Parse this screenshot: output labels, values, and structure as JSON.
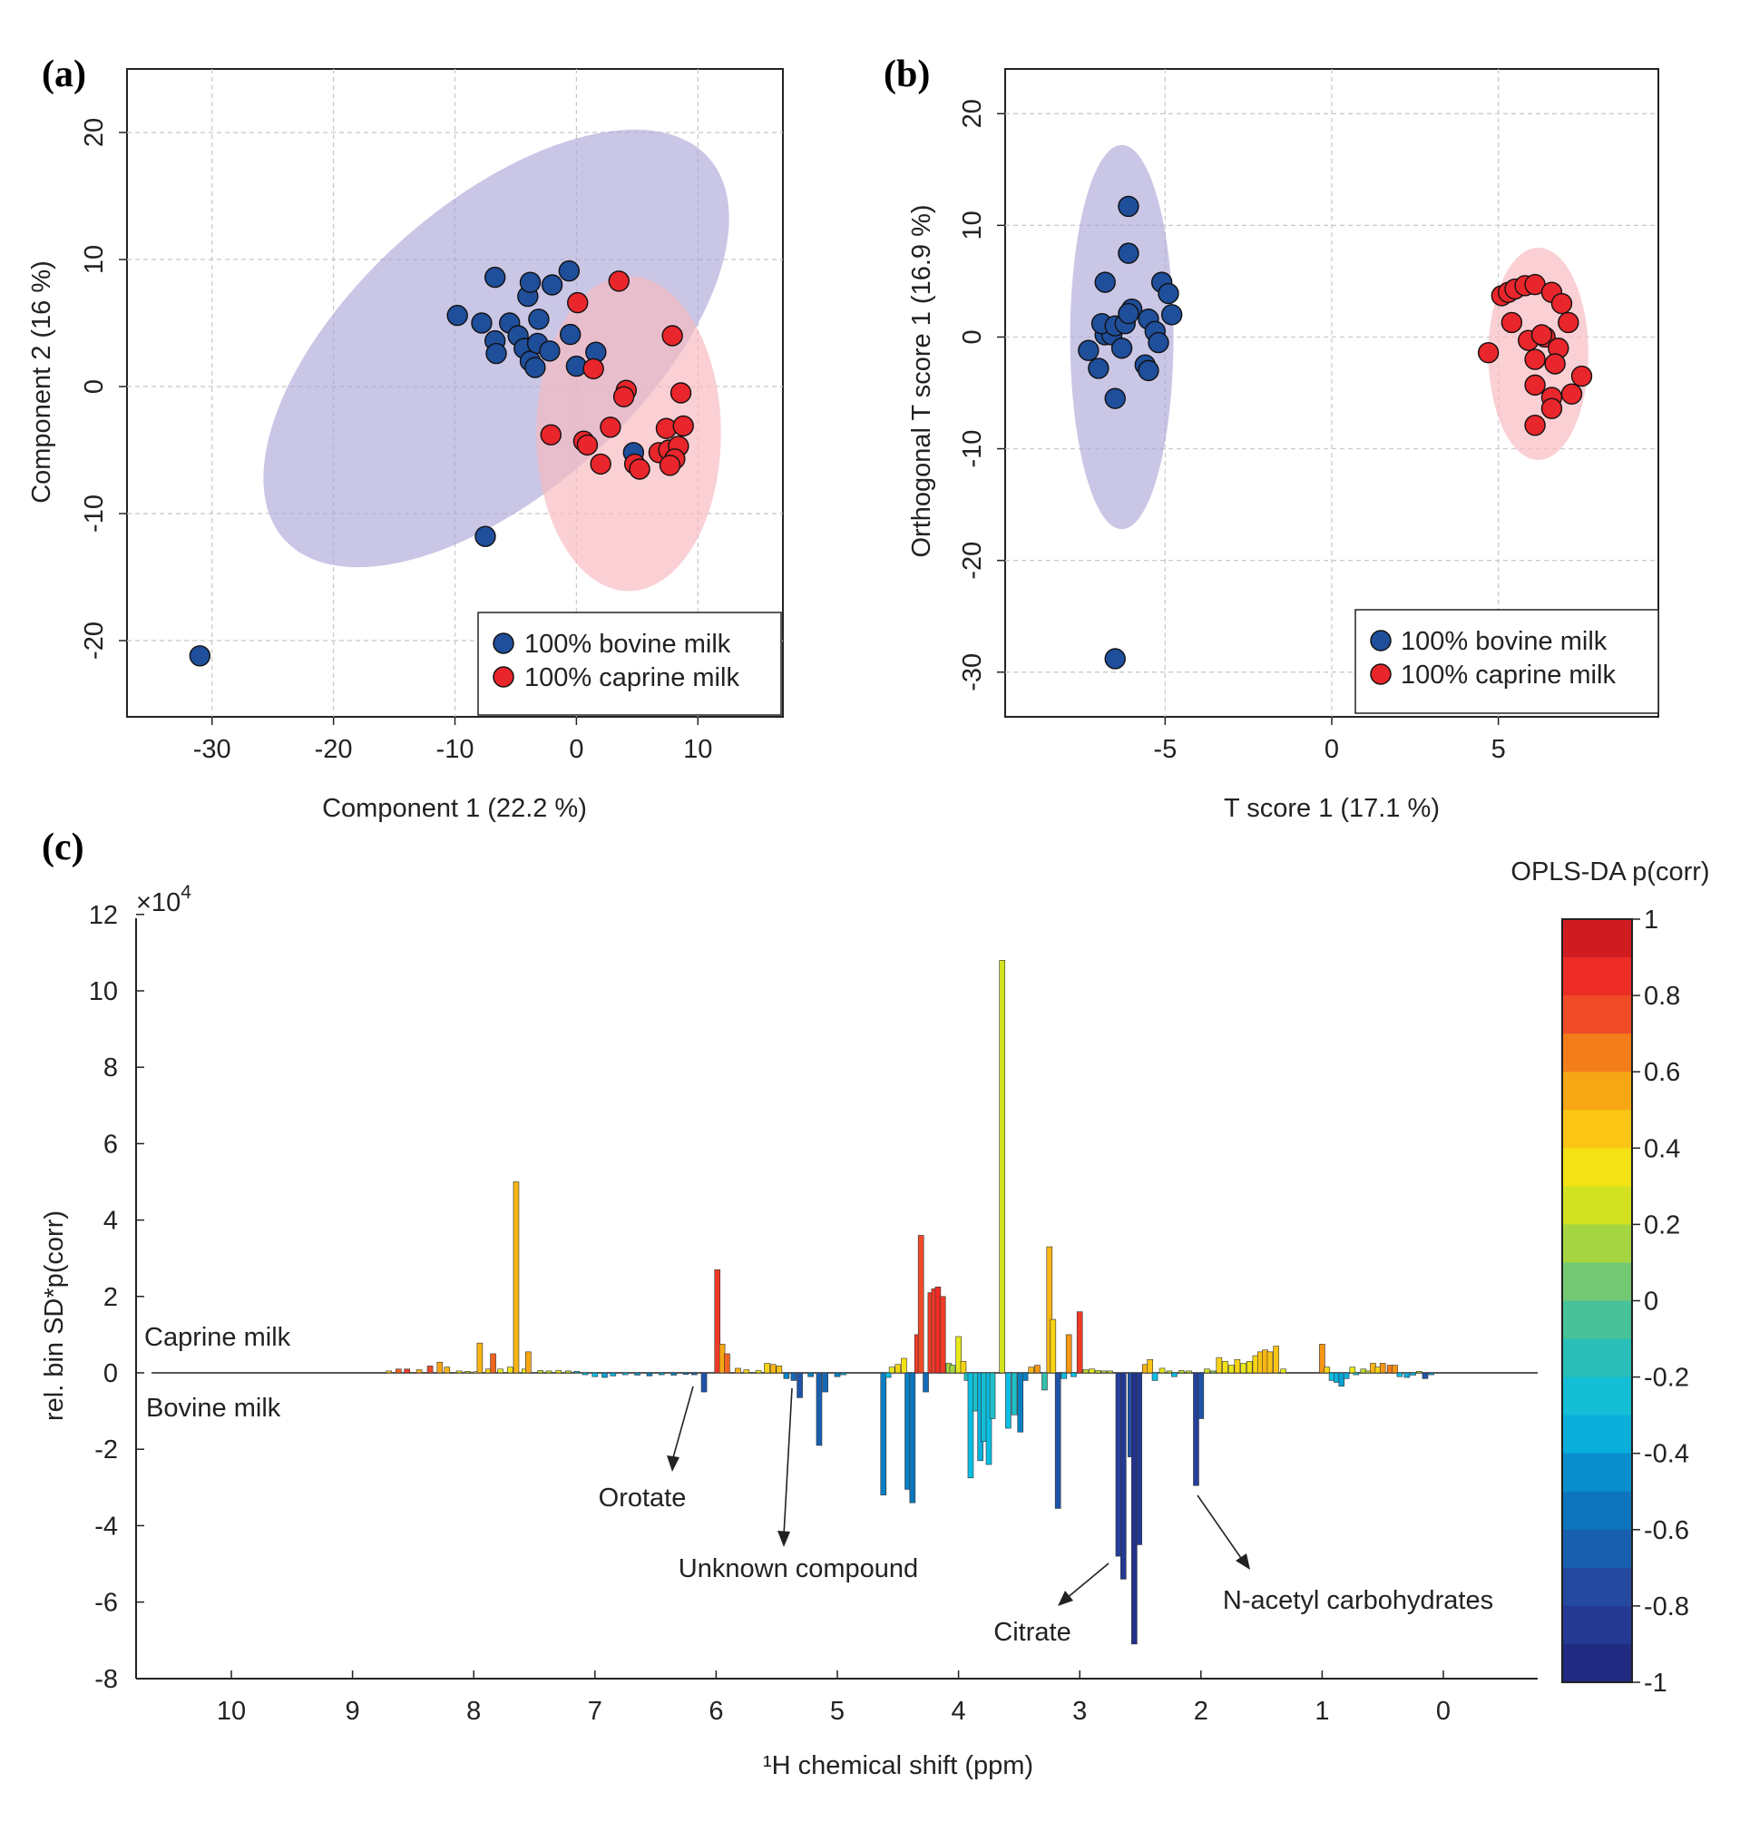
{
  "colors": {
    "bovine": "#1f4e9a",
    "caprine": "#e8262b",
    "bovine_ellipse": "#a9a3d6",
    "caprine_ellipse": "#f8b9c0"
  },
  "chart_data": [
    {
      "type": "scatter",
      "panel": "(a)",
      "xlabel": "Component 1 (22.2 %)",
      "ylabel": "Component 2 (16 %)",
      "xlim": [
        -37,
        17
      ],
      "ylim": [
        -26,
        25
      ],
      "xticks": [
        -30,
        -20,
        -10,
        0,
        10
      ],
      "yticks": [
        -20,
        -10,
        0,
        10,
        20
      ],
      "grid": true,
      "legend_position": "bottom-right",
      "series": [
        {
          "name": "100% bovine milk",
          "points": [
            [
              -31,
              -21.2
            ],
            [
              -7.5,
              -11.8
            ],
            [
              -9.8,
              5.6
            ],
            [
              -7.8,
              5.0
            ],
            [
              -6.7,
              3.6
            ],
            [
              -5.5,
              5.0
            ],
            [
              -4.8,
              4.0
            ],
            [
              -4.3,
              3.0
            ],
            [
              -3.8,
              2.0
            ],
            [
              -3.4,
              1.5
            ],
            [
              -6.6,
              2.6
            ],
            [
              -3.2,
              3.4
            ],
            [
              -2.2,
              2.8
            ],
            [
              -4.0,
              7.1
            ],
            [
              -2.0,
              8.0
            ],
            [
              -0.6,
              9.1
            ],
            [
              -3.8,
              8.2
            ],
            [
              -6.7,
              8.6
            ],
            [
              -3.1,
              5.3
            ],
            [
              -0.5,
              4.1
            ],
            [
              0.0,
              1.6
            ],
            [
              1.6,
              2.7
            ],
            [
              4.7,
              -5.2
            ]
          ]
        },
        {
          "name": "100% caprine milk",
          "points": [
            [
              0.1,
              6.6
            ],
            [
              3.5,
              8.3
            ],
            [
              1.4,
              1.4
            ],
            [
              7.9,
              4.0
            ],
            [
              4.1,
              -0.3
            ],
            [
              3.9,
              -0.8
            ],
            [
              8.6,
              -0.5
            ],
            [
              2.8,
              -3.2
            ],
            [
              7.4,
              -3.3
            ],
            [
              8.8,
              -3.1
            ],
            [
              -2.1,
              -3.8
            ],
            [
              0.6,
              -4.3
            ],
            [
              0.9,
              -4.6
            ],
            [
              6.8,
              -5.2
            ],
            [
              7.6,
              -5.0
            ],
            [
              8.4,
              -4.7
            ],
            [
              8.1,
              -5.7
            ],
            [
              2.0,
              -6.1
            ],
            [
              4.8,
              -6.1
            ],
            [
              5.2,
              -6.5
            ],
            [
              7.7,
              -6.2
            ]
          ]
        }
      ],
      "ellipses": [
        {
          "group": "100% bovine milk",
          "cx": -6.6,
          "cy": 3.0,
          "rx": 23.5,
          "ry": 11.3,
          "angle_deg": 42
        },
        {
          "group": "100% caprine milk",
          "cx": 4.3,
          "cy": -3.7,
          "rx": 7.6,
          "ry": 12.4,
          "angle_deg": 0
        }
      ]
    },
    {
      "type": "scatter",
      "panel": "(b)",
      "xlabel": "T score 1 (17.1 %)",
      "ylabel": "Orthogonal T score 1 (16.9 %)",
      "xlim": [
        -9.8,
        9.8
      ],
      "ylim": [
        -34,
        24
      ],
      "xticks": [
        -5,
        0,
        5
      ],
      "yticks": [
        -30,
        -20,
        -10,
        0,
        10,
        20
      ],
      "grid": true,
      "legend_position": "bottom-right",
      "series": [
        {
          "name": "100% bovine milk",
          "points": [
            [
              -6.5,
              -28.8
            ],
            [
              -6.5,
              -5.5
            ],
            [
              -7.0,
              -2.8
            ],
            [
              -7.3,
              -1.2
            ],
            [
              -6.8,
              0.2
            ],
            [
              -6.6,
              0.2
            ],
            [
              -6.9,
              1.2
            ],
            [
              -6.5,
              1.0
            ],
            [
              -6.3,
              -1.0
            ],
            [
              -6.2,
              1.2
            ],
            [
              -6.0,
              2.5
            ],
            [
              -5.6,
              -2.5
            ],
            [
              -5.5,
              -3.0
            ],
            [
              -5.5,
              1.6
            ],
            [
              -5.3,
              0.5
            ],
            [
              -5.2,
              -0.5
            ],
            [
              -5.1,
              4.9
            ],
            [
              -4.9,
              3.9
            ],
            [
              -4.8,
              2.0
            ],
            [
              -6.1,
              2.1
            ],
            [
              -6.8,
              4.9
            ],
            [
              -6.1,
              7.5
            ],
            [
              -6.1,
              11.7
            ]
          ]
        },
        {
          "name": "100% caprine milk",
          "points": [
            [
              4.7,
              -1.4
            ],
            [
              5.1,
              3.7
            ],
            [
              5.3,
              4.0
            ],
            [
              5.5,
              4.3
            ],
            [
              5.8,
              4.6
            ],
            [
              6.1,
              4.7
            ],
            [
              6.6,
              4.0
            ],
            [
              6.9,
              3.0
            ],
            [
              7.1,
              1.3
            ],
            [
              5.4,
              1.3
            ],
            [
              6.4,
              0.0
            ],
            [
              6.8,
              -1.0
            ],
            [
              6.7,
              -2.4
            ],
            [
              6.1,
              -2.0
            ],
            [
              5.9,
              -0.3
            ],
            [
              6.3,
              0.2
            ],
            [
              7.5,
              -3.5
            ],
            [
              6.1,
              -4.3
            ],
            [
              7.2,
              -5.1
            ],
            [
              6.6,
              -5.4
            ],
            [
              6.6,
              -6.4
            ],
            [
              6.1,
              -7.9
            ]
          ]
        }
      ],
      "ellipses": [
        {
          "group": "100% bovine milk",
          "cx": -6.3,
          "cy": 0.0,
          "rx": 1.55,
          "ry": 17.2,
          "angle_deg": 0
        },
        {
          "group": "100% caprine milk",
          "cx": 6.2,
          "cy": -1.5,
          "rx": 1.5,
          "ry": 9.5,
          "angle_deg": 0
        }
      ]
    },
    {
      "type": "bar",
      "panel": "(c)",
      "xlabel": "¹H chemical shift (ppm)",
      "ylabel": "rel. bin SD*p(corr)",
      "yscale_label": "×10",
      "yscale_exponent": "4",
      "xlim": [
        10.8,
        -0.8
      ],
      "ylim": [
        -8,
        12
      ],
      "xticks": [
        10,
        9,
        8,
        7,
        6,
        5,
        4,
        3,
        2,
        1,
        0
      ],
      "yticks": [
        12,
        10,
        8,
        6,
        4,
        2,
        0,
        -2,
        -4,
        -6,
        -8
      ],
      "group_labels": {
        "top": "Caprine milk",
        "bottom": "Bovine milk"
      },
      "colorbar": {
        "title": "OPLS-DA p(corr)",
        "ticks": [
          "1",
          "0.8",
          "0.6",
          "0.4",
          "0.2",
          "0",
          "-0.2",
          "-0.4",
          "-0.6",
          "-0.8",
          "-1"
        ],
        "range": [
          -1,
          1
        ]
      },
      "annotations": [
        {
          "text": "Orotate",
          "ppm": 6.1,
          "value": -2.5
        },
        {
          "text": "Unknown compound",
          "ppm": 5.35,
          "value": -4.5
        },
        {
          "text": "Citrate",
          "ppm": 2.65,
          "value": -6.1
        },
        {
          "text": "N-acetyl carbohydrates",
          "ppm": 2.0,
          "value": -5.0
        }
      ],
      "bars": [
        [
          8.7,
          0.05,
          0.4
        ],
        [
          8.62,
          0.1,
          0.7
        ],
        [
          8.55,
          0.1,
          0.8
        ],
        [
          8.45,
          0.08,
          0.5
        ],
        [
          8.36,
          0.18,
          0.75
        ],
        [
          8.28,
          0.28,
          0.55
        ],
        [
          8.22,
          0.15,
          0.5
        ],
        [
          8.12,
          0.05,
          0.3
        ],
        [
          8.05,
          0.04,
          0.2
        ],
        [
          7.98,
          0.03,
          0.3
        ],
        [
          7.95,
          0.78,
          0.5
        ],
        [
          7.88,
          0.1,
          0.4
        ],
        [
          7.84,
          0.5,
          0.7
        ],
        [
          7.78,
          0.1,
          0.3
        ],
        [
          7.7,
          0.15,
          0.35
        ],
        [
          7.65,
          5.0,
          0.5
        ],
        [
          7.58,
          0.1,
          0.3
        ],
        [
          7.55,
          0.55,
          0.55
        ],
        [
          7.45,
          0.06,
          0.2
        ],
        [
          7.38,
          0.05,
          0.25
        ],
        [
          7.3,
          0.06,
          0.3
        ],
        [
          7.22,
          0.05,
          0.2
        ],
        [
          7.15,
          0.04,
          -0.2
        ],
        [
          7.08,
          -0.05,
          -0.3
        ],
        [
          7.0,
          -0.1,
          -0.3
        ],
        [
          6.92,
          -0.12,
          -0.4
        ],
        [
          6.85,
          -0.08,
          -0.35
        ],
        [
          6.75,
          -0.05,
          -0.3
        ],
        [
          6.65,
          -0.06,
          -0.4
        ],
        [
          6.55,
          -0.08,
          -0.5
        ],
        [
          6.45,
          -0.05,
          -0.4
        ],
        [
          6.35,
          -0.06,
          -0.5
        ],
        [
          6.25,
          -0.04,
          -0.5
        ],
        [
          6.18,
          -0.05,
          -0.6
        ],
        [
          6.1,
          -0.5,
          -0.7
        ],
        [
          5.99,
          2.7,
          0.8
        ],
        [
          5.95,
          0.75,
          0.55
        ],
        [
          5.91,
          0.5,
          0.7
        ],
        [
          5.82,
          0.12,
          0.5
        ],
        [
          5.75,
          0.08,
          0.4
        ],
        [
          5.65,
          0.06,
          0.3
        ],
        [
          5.58,
          0.25,
          0.4
        ],
        [
          5.53,
          0.22,
          0.5
        ],
        [
          5.48,
          0.18,
          0.45
        ],
        [
          5.42,
          -0.15,
          -0.5
        ],
        [
          5.36,
          -0.2,
          -0.6
        ],
        [
          5.31,
          -0.65,
          -0.7
        ],
        [
          5.22,
          -0.1,
          -0.5
        ],
        [
          5.15,
          -1.9,
          -0.65
        ],
        [
          5.1,
          -0.5,
          -0.6
        ],
        [
          5.0,
          -0.1,
          -0.5
        ],
        [
          4.95,
          -0.05,
          -0.4
        ],
        [
          4.62,
          -3.2,
          -0.5
        ],
        [
          4.58,
          -0.12,
          -0.3
        ],
        [
          4.55,
          0.15,
          0.3
        ],
        [
          4.5,
          0.22,
          0.4
        ],
        [
          4.45,
          0.38,
          0.35
        ],
        [
          4.42,
          -3.05,
          -0.5
        ],
        [
          4.38,
          -3.4,
          -0.55
        ],
        [
          4.34,
          1.0,
          0.8
        ],
        [
          4.31,
          3.6,
          0.75
        ],
        [
          4.27,
          -0.5,
          -0.6
        ],
        [
          4.23,
          2.1,
          0.8
        ],
        [
          4.2,
          2.2,
          0.8
        ],
        [
          4.17,
          2.25,
          0.85
        ],
        [
          4.13,
          2.0,
          0.8
        ],
        [
          4.08,
          0.25,
          0.15
        ],
        [
          4.05,
          0.2,
          0.15
        ],
        [
          4.0,
          0.95,
          0.3
        ],
        [
          3.96,
          0.3,
          0.4
        ],
        [
          3.93,
          -0.2,
          -0.2
        ],
        [
          3.9,
          -2.75,
          -0.3
        ],
        [
          3.86,
          -1.0,
          -0.2
        ],
        [
          3.82,
          -2.3,
          -0.35
        ],
        [
          3.79,
          -1.8,
          -0.25
        ],
        [
          3.75,
          -2.4,
          -0.3
        ],
        [
          3.72,
          -1.2,
          -0.2
        ],
        [
          3.64,
          10.8,
          0.25
        ],
        [
          3.59,
          -1.45,
          -0.3
        ],
        [
          3.54,
          -1.1,
          -0.2
        ],
        [
          3.49,
          -1.55,
          -0.5
        ],
        [
          3.45,
          -0.2,
          -0.5
        ],
        [
          3.4,
          0.15,
          0.5
        ],
        [
          3.35,
          0.2,
          0.6
        ],
        [
          3.29,
          -0.45,
          -0.1
        ],
        [
          3.25,
          3.3,
          0.5
        ],
        [
          3.22,
          1.4,
          0.4
        ],
        [
          3.18,
          -3.55,
          -0.7
        ],
        [
          3.13,
          -0.15,
          -0.3
        ],
        [
          3.09,
          1.0,
          0.6
        ],
        [
          3.05,
          -0.1,
          -0.3
        ],
        [
          3.0,
          1.6,
          0.8
        ],
        [
          2.95,
          0.08,
          0.2
        ],
        [
          2.9,
          0.1,
          0.3
        ],
        [
          2.85,
          0.06,
          0.2
        ],
        [
          2.8,
          0.05,
          0.15
        ],
        [
          2.75,
          0.05,
          0.2
        ],
        [
          2.68,
          -4.8,
          -0.8
        ],
        [
          2.64,
          -5.4,
          -0.85
        ],
        [
          2.58,
          -2.2,
          -0.7
        ],
        [
          2.55,
          -7.1,
          -0.9
        ],
        [
          2.51,
          -4.5,
          -0.85
        ],
        [
          2.46,
          0.22,
          0.5
        ],
        [
          2.42,
          0.35,
          0.45
        ],
        [
          2.38,
          -0.2,
          -0.3
        ],
        [
          2.32,
          0.12,
          0.3
        ],
        [
          2.26,
          0.05,
          0.2
        ],
        [
          2.22,
          -0.1,
          -0.3
        ],
        [
          2.16,
          0.06,
          0.2
        ],
        [
          2.1,
          0.05,
          0.2
        ],
        [
          2.04,
          -2.95,
          -0.8
        ],
        [
          2.0,
          -1.2,
          -0.7
        ],
        [
          1.95,
          0.1,
          0.25
        ],
        [
          1.9,
          0.05,
          0.1
        ],
        [
          1.85,
          0.4,
          0.4
        ],
        [
          1.8,
          0.3,
          0.35
        ],
        [
          1.75,
          0.2,
          0.3
        ],
        [
          1.7,
          0.35,
          0.4
        ],
        [
          1.65,
          0.25,
          0.3
        ],
        [
          1.6,
          0.3,
          0.35
        ],
        [
          1.55,
          0.45,
          0.4
        ],
        [
          1.51,
          0.55,
          0.45
        ],
        [
          1.47,
          0.6,
          0.5
        ],
        [
          1.43,
          0.55,
          0.45
        ],
        [
          1.38,
          0.7,
          0.45
        ],
        [
          1.32,
          0.1,
          0.3
        ],
        [
          1.0,
          0.75,
          0.6
        ],
        [
          0.96,
          0.15,
          0.4
        ],
        [
          0.92,
          -0.2,
          -0.3
        ],
        [
          0.88,
          -0.25,
          -0.35
        ],
        [
          0.84,
          -0.35,
          -0.4
        ],
        [
          0.8,
          -0.15,
          -0.35
        ],
        [
          0.75,
          0.15,
          0.3
        ],
        [
          0.72,
          -0.05,
          -0.2
        ],
        [
          0.66,
          0.1,
          0.2
        ],
        [
          0.62,
          0.05,
          0.2
        ],
        [
          0.58,
          0.25,
          0.5
        ],
        [
          0.54,
          0.15,
          0.4
        ],
        [
          0.5,
          0.25,
          0.6
        ],
        [
          0.44,
          0.2,
          0.65
        ],
        [
          0.4,
          0.2,
          0.6
        ],
        [
          0.36,
          -0.1,
          -0.3
        ],
        [
          0.3,
          -0.12,
          -0.35
        ],
        [
          0.25,
          -0.06,
          -0.3
        ],
        [
          0.2,
          0.04,
          0.2
        ],
        [
          0.15,
          -0.15,
          -0.7
        ],
        [
          0.1,
          -0.05,
          -0.4
        ]
      ]
    }
  ]
}
